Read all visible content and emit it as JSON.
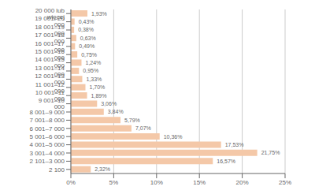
{
  "chart_data": {
    "type": "bar",
    "orientation": "horizontal",
    "categories": [
      "20 000 lub więcej",
      "19 001–20 000",
      "18 001–19 000",
      "17 001–18 000",
      "16 001–17 000",
      "15 001–16 000",
      "14 001–15 000",
      "13 001–14 000",
      "12 001–13 000",
      "11 001–12 000",
      "10 001–11 000",
      "9 001–10 000",
      "8 001–9 000",
      "7 001–8 000",
      "6 001–7 000",
      "5 001–6 000",
      "4 001–5 000",
      "3 001–4 000",
      "2 101–3 000",
      "2 100"
    ],
    "values": [
      1.93,
      0.43,
      0.38,
      0.63,
      0.49,
      0.75,
      1.24,
      0.95,
      1.33,
      1.7,
      1.89,
      3.06,
      3.84,
      5.79,
      7.07,
      10.36,
      17.53,
      21.75,
      16.57,
      2.32
    ],
    "value_labels": [
      "1,93%",
      "0,43%",
      "0,38%",
      "0,63%",
      "0,49%",
      "0,75%",
      "1,24%",
      "0,95%",
      "1,33%",
      "1,70%",
      "1,89%",
      "3,06%",
      "3,84%",
      "5,79%",
      "7,07%",
      "10,36%",
      "17,53%",
      "21,75%",
      "16,57%",
      "2,32%"
    ],
    "color": "#f4c8a8",
    "xlim": [
      0,
      25
    ],
    "xticks": [
      {
        "value": 0,
        "label": "0%"
      },
      {
        "value": 5,
        "label": "5%"
      },
      {
        "value": 10,
        "label": "10%"
      },
      {
        "value": 15,
        "label": "15%"
      },
      {
        "value": 20,
        "label": "20%"
      },
      {
        "value": 25,
        "label": "25%"
      }
    ],
    "grid": true,
    "data_labels": true
  }
}
